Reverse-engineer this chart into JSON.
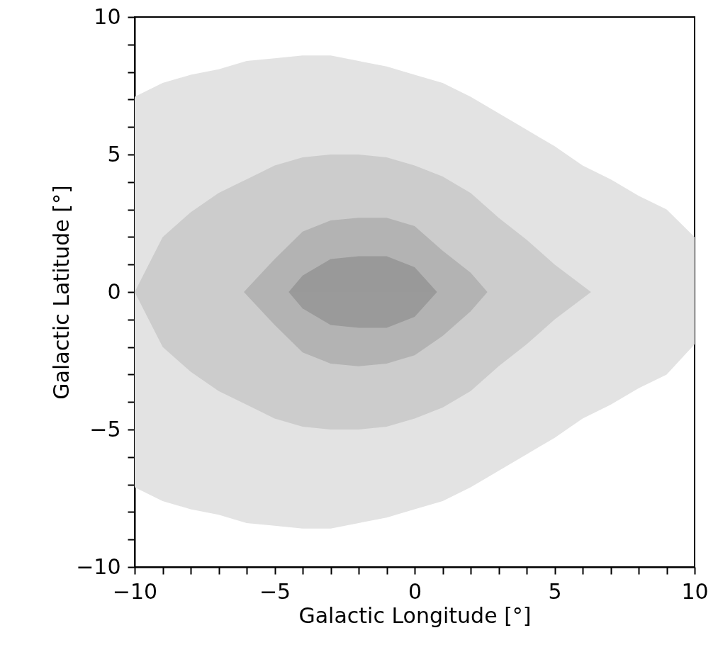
{
  "chart_data": {
    "type": "area",
    "xlabel": "Galactic Longitude [°]",
    "ylabel": "Galactic Latitude [°]",
    "xlim": [
      -10,
      10
    ],
    "ylim": [
      -10,
      10
    ],
    "xticks": [
      -10,
      {
        "value": -9,
        "label": null
      },
      {
        "value": -8,
        "label": null
      },
      {
        "value": -7,
        "label": null
      },
      {
        "value": -6,
        "label": null
      },
      -5,
      {
        "value": -4,
        "label": null
      },
      {
        "value": -3,
        "label": null
      },
      {
        "value": -2,
        "label": null
      },
      {
        "value": -1,
        "label": null
      },
      0,
      {
        "value": 1,
        "label": null
      },
      {
        "value": 2,
        "label": null
      },
      {
        "value": 3,
        "label": null
      },
      {
        "value": 4,
        "label": null
      },
      5,
      {
        "value": 6,
        "label": null
      },
      {
        "value": 7,
        "label": null
      },
      {
        "value": 8,
        "label": null
      },
      {
        "value": 9,
        "label": null
      },
      10
    ],
    "yticks": [
      -10,
      {
        "value": -9,
        "label": null
      },
      {
        "value": -8,
        "label": null
      },
      {
        "value": -7,
        "label": null
      },
      {
        "value": -6,
        "label": null
      },
      -5,
      {
        "value": -4,
        "label": null
      },
      {
        "value": -3,
        "label": null
      },
      {
        "value": -2,
        "label": null
      },
      {
        "value": -1,
        "label": null
      },
      0,
      {
        "value": 1,
        "label": null
      },
      {
        "value": 2,
        "label": null
      },
      {
        "value": 3,
        "label": null
      },
      {
        "value": 4,
        "label": null
      },
      5,
      {
        "value": 6,
        "label": null
      },
      {
        "value": 7,
        "label": null
      },
      {
        "value": 8,
        "label": null
      },
      {
        "value": 9,
        "label": null
      },
      10
    ],
    "series": [
      {
        "color": "#e3e3e3",
        "x": [
          -10,
          -9,
          -8,
          -7,
          -6,
          -5,
          -4,
          -3,
          -2,
          -1,
          0,
          1,
          2,
          3,
          4,
          5,
          6,
          7,
          8,
          9,
          10
        ],
        "values": [
          7.1,
          7.6,
          7.9,
          8.1,
          8.4,
          8.5,
          8.6,
          8.6,
          8.4,
          8.2,
          7.9,
          7.6,
          7.1,
          6.5,
          5.9,
          5.3,
          4.6,
          4.1,
          3.5,
          3.0,
          2.0
        ]
      },
      {
        "color": "#e3e3e3",
        "x": [
          -10,
          -9,
          -8,
          -7,
          -6,
          -5,
          -4,
          -3,
          -2,
          -1,
          0,
          1,
          2,
          3,
          4,
          5,
          6,
          7,
          8,
          9,
          10
        ],
        "values": [
          -7.1,
          -7.6,
          -7.9,
          -8.1,
          -8.4,
          -8.5,
          -8.6,
          -8.6,
          -8.4,
          -8.2,
          -7.9,
          -7.6,
          -7.1,
          -6.5,
          -5.9,
          -5.3,
          -4.6,
          -4.1,
          -3.5,
          -3.0,
          -1.9
        ]
      },
      {
        "color": "#cccccc",
        "x": [
          -10,
          -9,
          -8,
          -7,
          -6,
          -5,
          -4,
          -3,
          -2,
          -1,
          0,
          1,
          2,
          3,
          4,
          5,
          6.3
        ],
        "values": [
          0,
          2.0,
          2.9,
          3.6,
          4.1,
          4.6,
          4.9,
          5.0,
          5.0,
          4.9,
          4.6,
          4.2,
          3.6,
          2.7,
          1.9,
          1.0,
          0
        ]
      },
      {
        "color": "#cccccc",
        "x": [
          -10,
          -9,
          -8,
          -7,
          -6,
          -5,
          -4,
          -3,
          -2,
          -1,
          0,
          1,
          2,
          3,
          4,
          5,
          6.3
        ],
        "values": [
          0,
          -2.0,
          -2.9,
          -3.6,
          -4.1,
          -4.6,
          -4.9,
          -5.0,
          -5.0,
          -4.9,
          -4.6,
          -4.2,
          -3.6,
          -2.7,
          -1.9,
          -1.0,
          0
        ]
      },
      {
        "color": "#b3b3b3",
        "x": [
          -6.1,
          -5,
          -4,
          -3,
          -2,
          -1,
          0,
          1,
          2,
          2.6
        ],
        "values": [
          0,
          1.2,
          2.2,
          2.6,
          2.7,
          2.7,
          2.4,
          1.5,
          0.7,
          0
        ]
      },
      {
        "color": "#b3b3b3",
        "x": [
          -6.1,
          -5,
          -4,
          -3,
          -2,
          -1,
          0,
          1,
          2,
          2.6
        ],
        "values": [
          0,
          -1.2,
          -2.2,
          -2.6,
          -2.7,
          -2.6,
          -2.3,
          -1.6,
          -0.7,
          0
        ]
      },
      {
        "color": "#999999",
        "x": [
          -4.5,
          -4,
          -3,
          -2,
          -1,
          0,
          0.8
        ],
        "values": [
          0,
          0.6,
          1.2,
          1.3,
          1.3,
          0.9,
          0
        ]
      },
      {
        "color": "#9a9a9a",
        "x": [
          -4.5,
          -4,
          -3,
          -2,
          -1,
          0,
          0.8
        ],
        "values": [
          0,
          -0.6,
          -1.2,
          -1.3,
          -1.3,
          -0.9,
          0
        ]
      }
    ]
  }
}
